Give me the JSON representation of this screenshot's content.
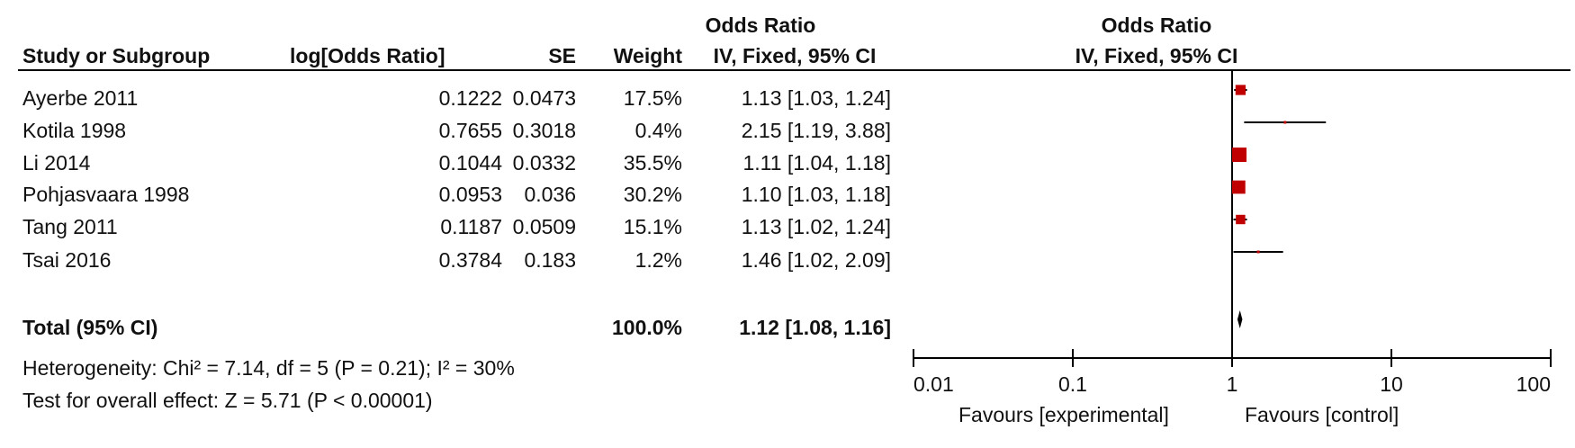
{
  "headers": {
    "study": "Study or Subgroup",
    "log_or": "log[Odds Ratio]",
    "se": "SE",
    "weight": "Weight",
    "or_group_title": "Odds Ratio",
    "or_method": "IV, Fixed, 95% CI",
    "plot_title": "Odds Ratio",
    "plot_method": "IV, Fixed, 95% CI"
  },
  "studies": [
    {
      "name": "Ayerbe 2011",
      "log_or": "0.1222",
      "se": "0.0473",
      "weight": "17.5%",
      "ci_text": "1.13 [1.03, 1.24]"
    },
    {
      "name": "Kotila 1998",
      "log_or": "0.7655",
      "se": "0.3018",
      "weight": "0.4%",
      "ci_text": "2.15 [1.19, 3.88]"
    },
    {
      "name": "Li 2014",
      "log_or": "0.1044",
      "se": "0.0332",
      "weight": "35.5%",
      "ci_text": "1.11 [1.04, 1.18]"
    },
    {
      "name": "Pohjasvaara 1998",
      "log_or": "0.0953",
      "se": "0.036",
      "weight": "30.2%",
      "ci_text": "1.10 [1.03, 1.18]"
    },
    {
      "name": "Tang 2011",
      "log_or": "0.1187",
      "se": "0.0509",
      "weight": "15.1%",
      "ci_text": "1.13 [1.02, 1.24]"
    },
    {
      "name": "Tsai 2016",
      "log_or": "0.3784",
      "se": "0.183",
      "weight": "1.2%",
      "ci_text": "1.46 [1.02, 2.09]"
    }
  ],
  "total": {
    "label": "Total (95% CI)",
    "weight": "100.0%",
    "ci_text": "1.12 [1.08, 1.16]"
  },
  "footer": {
    "heterogeneity": "Heterogeneity: Chi² = 7.14, df = 5 (P = 0.21); I² = 30%",
    "overall_effect": "Test for overall effect: Z = 5.71 (P < 0.00001)"
  },
  "axis": {
    "ticks": [
      "0.01",
      "0.1",
      "1",
      "10",
      "100"
    ],
    "favours_left": "Favours [experimental]",
    "favours_right": "Favours [control]"
  },
  "chart_data": {
    "type": "forest",
    "x_scale": "log",
    "xlim": [
      0.01,
      100
    ],
    "null_value": 1,
    "marker_color": "#c00000",
    "points": [
      {
        "study": "Ayerbe 2011",
        "or": 1.13,
        "lo": 1.03,
        "hi": 1.24,
        "weight": 17.5
      },
      {
        "study": "Kotila 1998",
        "or": 2.15,
        "lo": 1.19,
        "hi": 3.88,
        "weight": 0.4
      },
      {
        "study": "Li 2014",
        "or": 1.11,
        "lo": 1.04,
        "hi": 1.18,
        "weight": 35.5
      },
      {
        "study": "Pohjasvaara 1998",
        "or": 1.1,
        "lo": 1.03,
        "hi": 1.18,
        "weight": 30.2
      },
      {
        "study": "Tang 2011",
        "or": 1.13,
        "lo": 1.02,
        "hi": 1.24,
        "weight": 15.1
      },
      {
        "study": "Tsai 2016",
        "or": 1.46,
        "lo": 1.02,
        "hi": 2.09,
        "weight": 1.2
      }
    ],
    "total": {
      "or": 1.12,
      "lo": 1.08,
      "hi": 1.16
    }
  }
}
